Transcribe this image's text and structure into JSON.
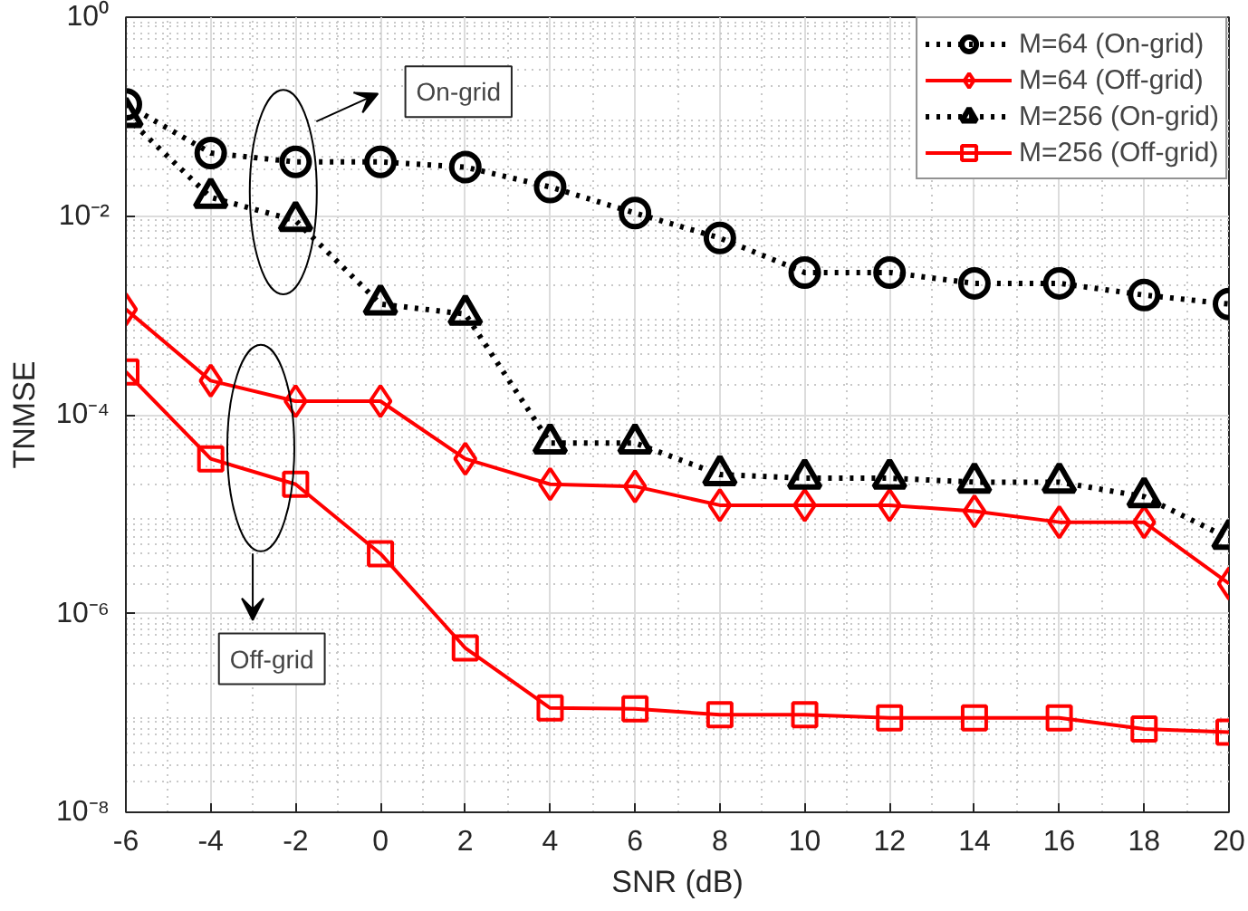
{
  "chart_data": {
    "type": "line",
    "xlabel": "SNR (dB)",
    "ylabel": "TNMSE",
    "x": [
      -6,
      -4,
      -2,
      0,
      2,
      4,
      6,
      8,
      10,
      12,
      14,
      16,
      18,
      20
    ],
    "series": [
      {
        "name": "M=64 (On-grid)",
        "color": "#000000",
        "marker": "circle",
        "line_style": "dotted",
        "values": [
          0.133,
          0.043,
          0.035,
          0.035,
          0.031,
          0.0196,
          0.0107,
          0.006,
          0.0027,
          0.0027,
          0.0021,
          0.0021,
          0.0016,
          0.0013
        ]
      },
      {
        "name": "M=64 (Off-grid)",
        "color": "#ff0000",
        "marker": "diamond",
        "line_style": "solid",
        "values": [
          0.00115,
          0.00022,
          0.000137,
          0.000137,
          3.6e-05,
          2e-05,
          1.9e-05,
          1.23e-05,
          1.23e-05,
          1.23e-05,
          1.07e-05,
          8.3e-06,
          8.3e-06,
          2e-06
        ]
      },
      {
        "name": "M=256 (On-grid)",
        "color": "#000000",
        "marker": "triangle",
        "line_style": "dotted",
        "values": [
          0.1,
          0.0154,
          0.009,
          0.0013,
          0.00103,
          5.2e-05,
          5.2e-05,
          2.5e-05,
          2.3e-05,
          2.3e-05,
          2.1e-05,
          2.1e-05,
          1.5e-05,
          5.7e-06
        ]
      },
      {
        "name": "M=256 (Off-grid)",
        "color": "#ff0000",
        "marker": "square",
        "line_style": "solid",
        "values": [
          0.00027,
          3.6e-05,
          2e-05,
          4e-06,
          4.5e-07,
          1.12e-07,
          1.1e-07,
          9.6e-08,
          9.6e-08,
          8.9e-08,
          8.9e-08,
          8.9e-08,
          6.9e-08,
          6.4e-08
        ]
      }
    ],
    "xlim": [
      -6,
      20
    ],
    "xticks": [
      -6,
      -4,
      -2,
      0,
      2,
      4,
      6,
      8,
      10,
      12,
      14,
      16,
      18,
      20
    ],
    "ylim": [
      1e-08,
      1
    ],
    "log": "y",
    "yticks": [
      {
        "value": 1e-08,
        "label": "10⁻⁸"
      },
      {
        "value": 1e-06,
        "label": "10⁻⁶"
      },
      {
        "value": 0.0001,
        "label": "10⁻⁴"
      },
      {
        "value": 0.01,
        "label": "10⁻²"
      },
      {
        "value": 1,
        "label": "10⁰"
      }
    ],
    "annotations": [
      "On-grid",
      "Off-grid"
    ],
    "grid": true,
    "legend": "top right"
  }
}
